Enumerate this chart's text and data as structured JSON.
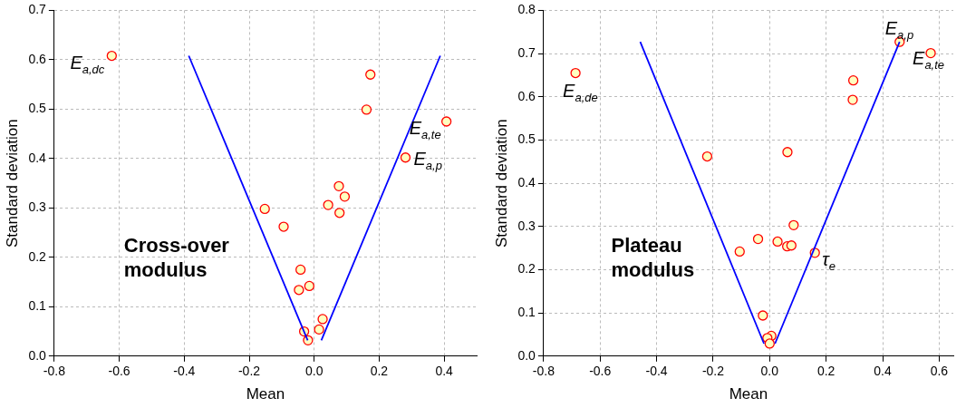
{
  "chart_data": [
    {
      "type": "scatter",
      "xlabel": "Mean",
      "ylabel": "Standard deviation",
      "xlim": [
        -0.8,
        0.5
      ],
      "ylim": [
        0,
        0.7
      ],
      "xticks": [
        -0.8,
        -0.6,
        -0.4,
        -0.2,
        {
          "value": 0,
          "label": "0.0"
        },
        0.2,
        0.4
      ],
      "yticks": [
        {
          "value": 0,
          "label": "0.0"
        },
        0.1,
        0.2,
        0.3,
        0.4,
        0.5,
        0.6,
        0.7
      ],
      "grid": true,
      "legend": false,
      "series": [
        {
          "type": "scatter",
          "marker": "circle",
          "color": "#ff0000",
          "x": [
            -0.623,
            0.173,
            0.161,
            0.407,
            0.281,
            0.076,
            0.094,
            0.043,
            0.078,
            -0.152,
            -0.094,
            -0.042,
            -0.047,
            -0.015,
            0.026,
            0.015,
            -0.031,
            -0.019
          ],
          "values": [
            0.608,
            0.57,
            0.499,
            0.475,
            0.402,
            0.344,
            0.323,
            0.306,
            0.29,
            0.298,
            0.262,
            0.175,
            0.134,
            0.142,
            0.075,
            0.054,
            0.05,
            0.032
          ]
        },
        {
          "type": "line",
          "color": "#0000ff",
          "x": [
            -0.386,
            -0.02
          ],
          "values": [
            0.608,
            0.032
          ]
        },
        {
          "type": "line",
          "color": "#0000ff",
          "x": [
            0.022,
            0.388
          ],
          "values": [
            0.032,
            0.608
          ]
        }
      ],
      "annotations": [
        "Cross-over\nmodulus",
        {
          "text": "E$_{a,dc}$",
          "x": -0.623,
          "y": 0.608
        },
        {
          "text": "E$_{a,te}$",
          "x": 0.407,
          "y": 0.475
        },
        {
          "text": "E$_{a,p}$",
          "x": 0.281,
          "y": 0.402
        }
      ]
    },
    {
      "type": "scatter",
      "xlabel": "Mean",
      "ylabel": "Standard deviation",
      "xlim": [
        -0.8,
        0.65
      ],
      "ylim": [
        0,
        0.8
      ],
      "xticks": [
        -0.8,
        -0.6,
        -0.4,
        -0.2,
        {
          "value": 0,
          "label": "0.0"
        },
        0.2,
        0.4,
        0.6
      ],
      "yticks": [
        {
          "value": 0,
          "label": "0.0"
        },
        0.1,
        0.2,
        0.3,
        0.4,
        0.5,
        0.6,
        0.7,
        0.8
      ],
      "grid": true,
      "legend": false,
      "series": [
        {
          "type": "scatter",
          "marker": "circle",
          "color": "#ff0000",
          "x": [
            -0.687,
            0.46,
            0.57,
            0.296,
            0.294,
            -0.221,
            0.063,
            0.085,
            -0.041,
            0.028,
            0.062,
            0.077,
            -0.106,
            0.16,
            -0.024,
            0.006,
            -0.008,
            0.0
          ],
          "values": [
            0.655,
            0.727,
            0.701,
            0.638,
            0.593,
            0.462,
            0.472,
            0.303,
            0.271,
            0.265,
            0.254,
            0.256,
            0.242,
            0.239,
            0.094,
            0.047,
            0.042,
            0.029
          ]
        },
        {
          "type": "line",
          "color": "#0000ff",
          "x": [
            -0.458,
            -0.02
          ],
          "values": [
            0.727,
            0.029
          ]
        },
        {
          "type": "line",
          "color": "#0000ff",
          "x": [
            0.019,
            0.46
          ],
          "values": [
            0.029,
            0.727
          ]
        }
      ],
      "annotations": [
        "Plateau\nmodulus",
        {
          "text": "E$_{a,de}$",
          "x": -0.687,
          "y": 0.655
        },
        {
          "text": "E$_{a,p}$",
          "x": 0.46,
          "y": 0.727
        },
        {
          "text": "E$_{a,te}$",
          "x": 0.57,
          "y": 0.701
        },
        {
          "text": "τ$_{e}$",
          "x": 0.16,
          "y": 0.239
        }
      ]
    }
  ]
}
